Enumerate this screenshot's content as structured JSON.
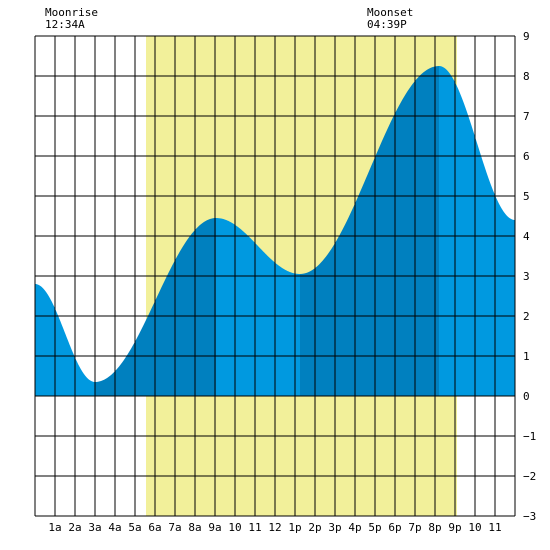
{
  "chart_data": {
    "type": "area",
    "x_unit": "hours since midnight",
    "xlim": [
      0,
      24
    ],
    "ylim": [
      -3,
      9
    ],
    "y_ticks": [
      9,
      8,
      7,
      6,
      5,
      4,
      3,
      2,
      1,
      0,
      -1,
      -2,
      -3
    ],
    "x_ticks": [
      {
        "x": 1,
        "label": "1a"
      },
      {
        "x": 2,
        "label": "2a"
      },
      {
        "x": 3,
        "label": "3a"
      },
      {
        "x": 4,
        "label": "4a"
      },
      {
        "x": 5,
        "label": "5a"
      },
      {
        "x": 6,
        "label": "6a"
      },
      {
        "x": 7,
        "label": "7a"
      },
      {
        "x": 8,
        "label": "8a"
      },
      {
        "x": 9,
        "label": "9a"
      },
      {
        "x": 10,
        "label": "10"
      },
      {
        "x": 11,
        "label": "11"
      },
      {
        "x": 12,
        "label": "12"
      },
      {
        "x": 13,
        "label": "1p"
      },
      {
        "x": 14,
        "label": "2p"
      },
      {
        "x": 15,
        "label": "3p"
      },
      {
        "x": 16,
        "label": "4p"
      },
      {
        "x": 17,
        "label": "5p"
      },
      {
        "x": 18,
        "label": "6p"
      },
      {
        "x": 19,
        "label": "7p"
      },
      {
        "x": 20,
        "label": "8p"
      },
      {
        "x": 21,
        "label": "9p"
      },
      {
        "x": 22,
        "label": "10"
      },
      {
        "x": 23,
        "label": "11"
      }
    ],
    "daylight": [
      5.55,
      21.1
    ],
    "extrema": [
      {
        "x": 0.0,
        "y": 2.8
      },
      {
        "x": 3.0,
        "y": 0.35
      },
      {
        "x": 9.05,
        "y": 4.45
      },
      {
        "x": 13.25,
        "y": 3.05
      },
      {
        "x": 20.2,
        "y": 8.25
      },
      {
        "x": 24.0,
        "y": 4.4
      }
    ],
    "bands": [
      {
        "from": 0,
        "to": 3.0,
        "shade": "light"
      },
      {
        "from": 3.0,
        "to": 9.05,
        "shade": "dark"
      },
      {
        "from": 9.05,
        "to": 13.25,
        "shade": "light"
      },
      {
        "from": 13.25,
        "to": 20.2,
        "shade": "dark"
      },
      {
        "from": 20.2,
        "to": 24,
        "shade": "light"
      }
    ],
    "colors": {
      "daylight": "#f2f09a",
      "area_light": "#0099e0",
      "area_dark": "#0080bf",
      "grid": "#000000"
    }
  },
  "moonrise": {
    "label": "Moonrise",
    "time": "12:34A",
    "x": 0.567
  },
  "moonset": {
    "label": "Moonset",
    "time": "04:39P",
    "x": 16.65
  }
}
